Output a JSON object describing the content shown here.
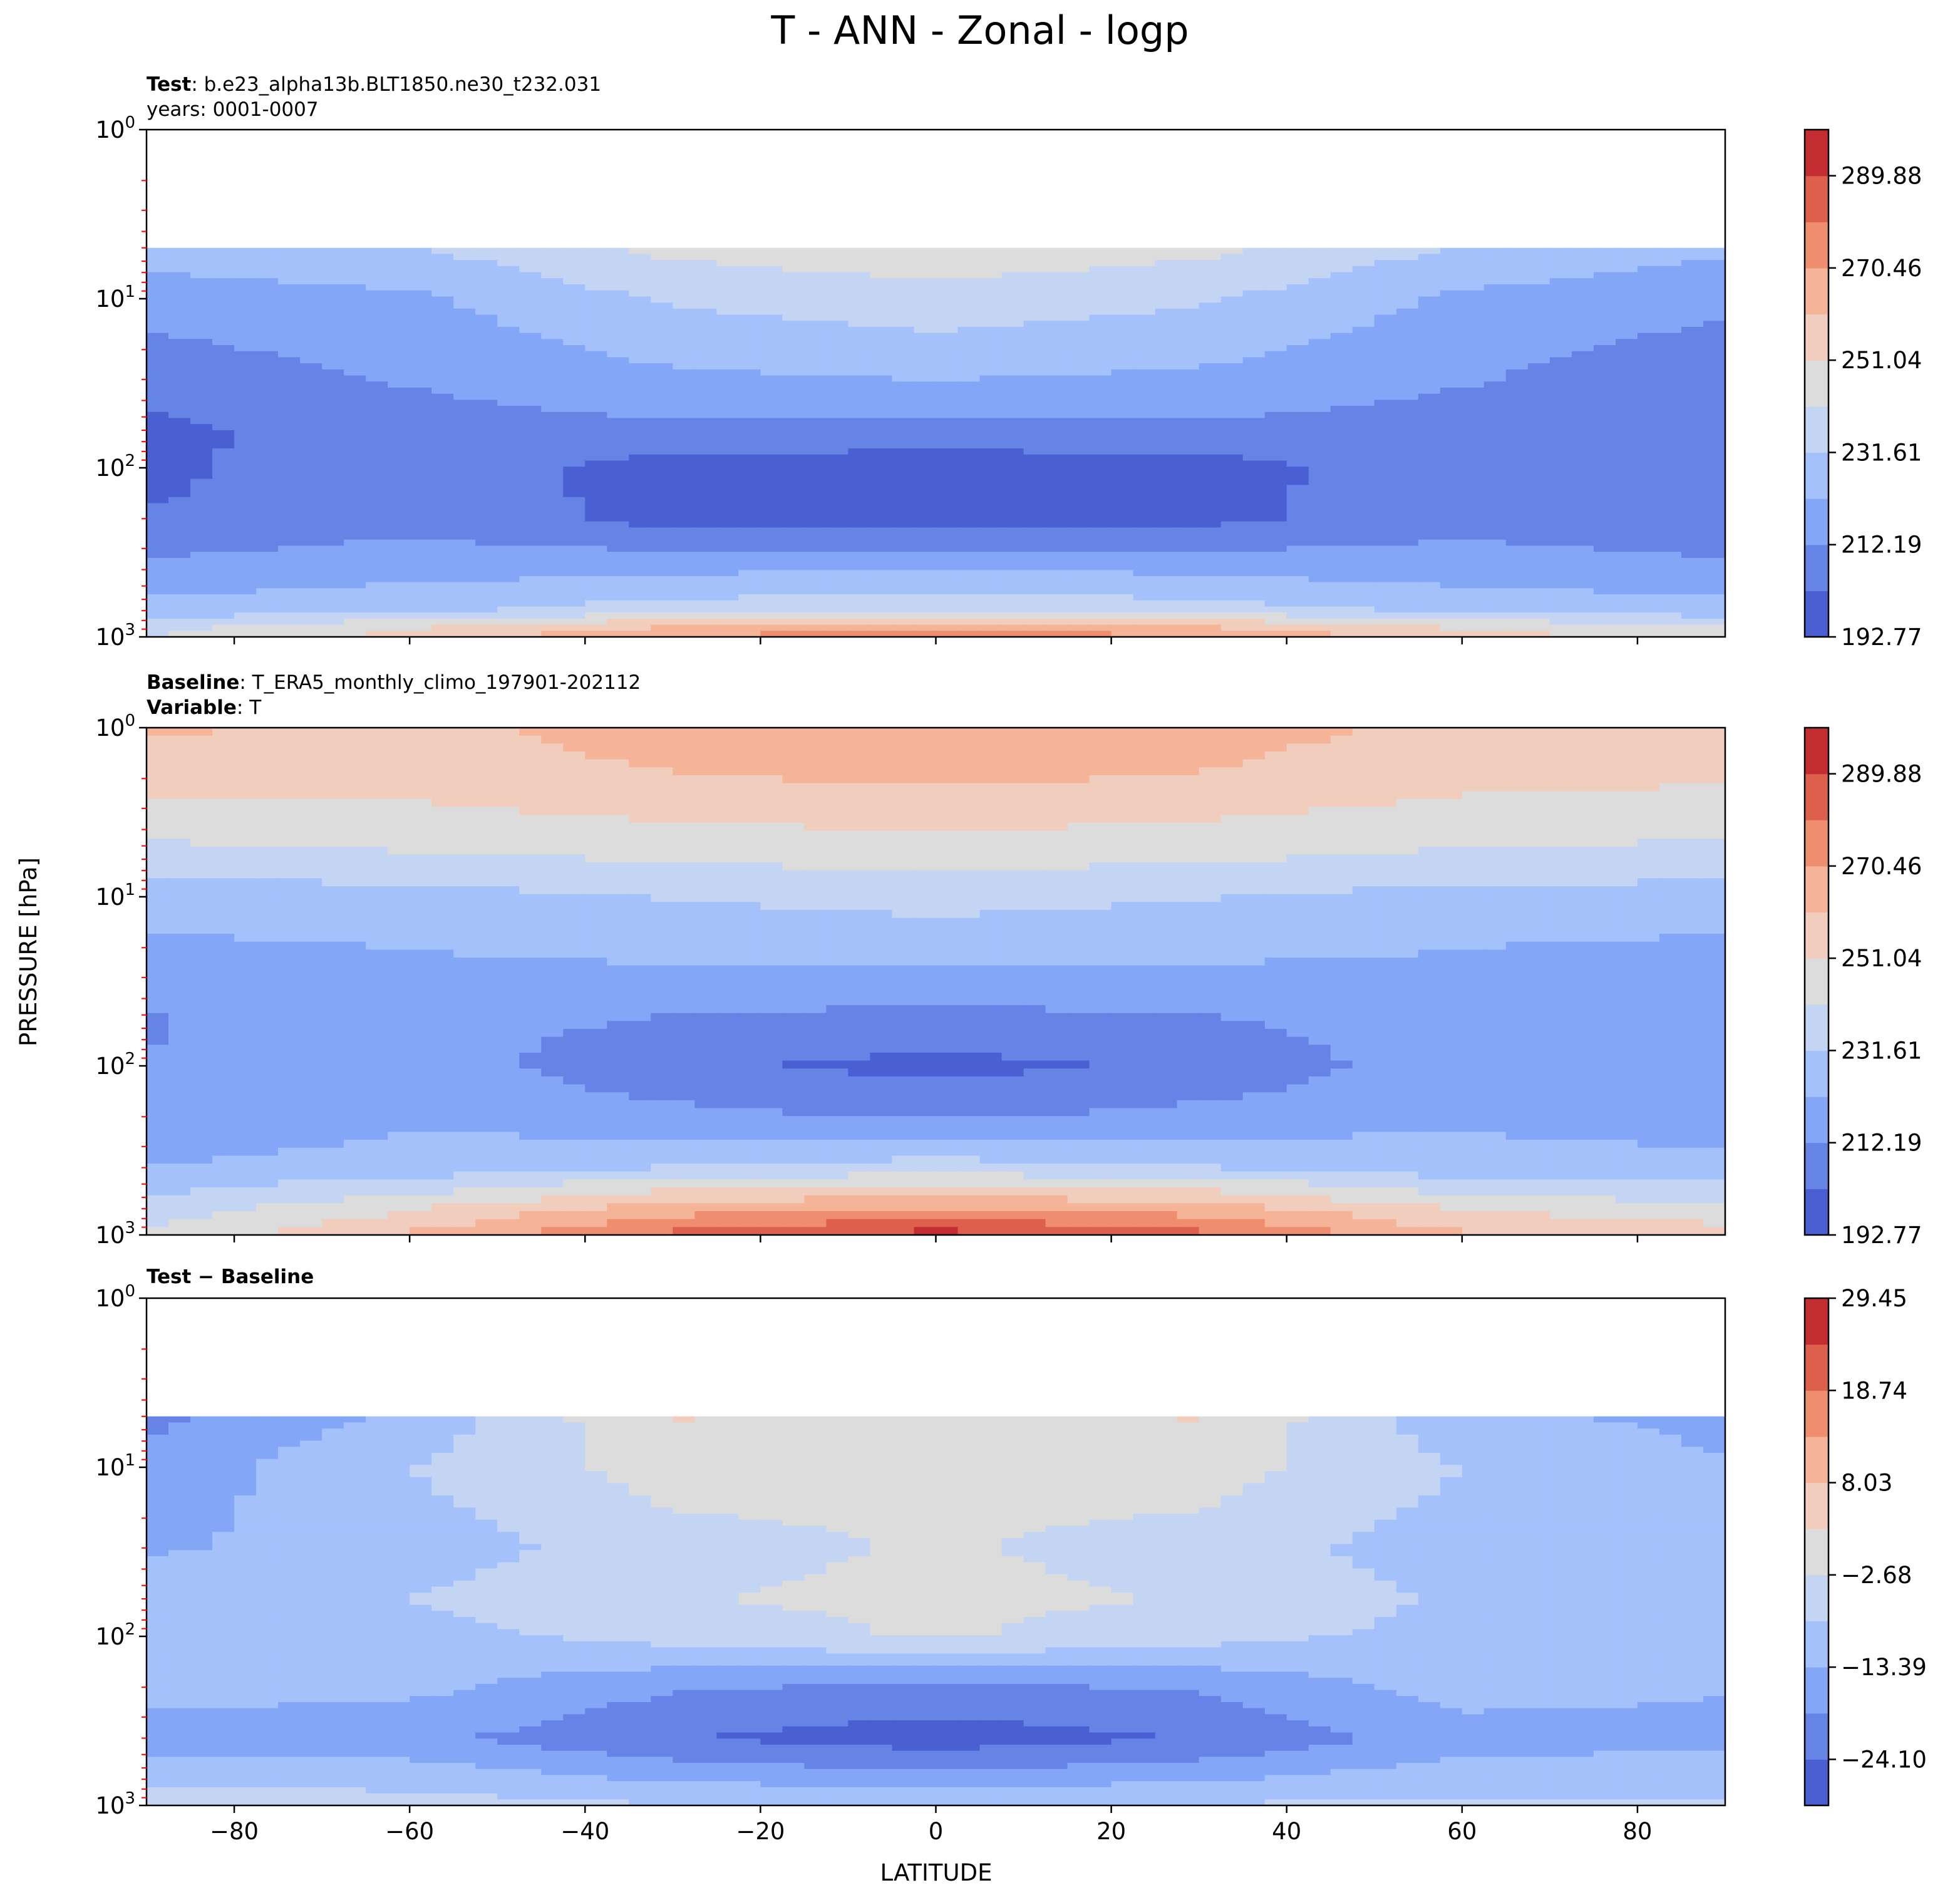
{
  "figure": {
    "title": "T - ANN - Zonal - logp",
    "xlabel": "LATITUDE",
    "ylabel": "PRESSURE [hPa]"
  },
  "colors": {
    "scale": [
      "#4a5fd1",
      "#6683e6",
      "#84a6f7",
      "#a4c1fc",
      "#c3d5f3",
      "#dcdcdc",
      "#f1cdbd",
      "#f5b498",
      "#ef8e6f",
      "#dd604d",
      "#c32c30"
    ],
    "diff_scale": [
      "#4a5fd1",
      "#6683e6",
      "#84a6f7",
      "#a4c1fc",
      "#c3d5f3",
      "#dcdcdc",
      "#f1cdbd",
      "#f5b498",
      "#ef8e6f",
      "#dd604d",
      "#c32c30"
    ],
    "axis": "#000000",
    "minor_tick": "#ff0000"
  },
  "chart_data": [
    {
      "type": "heatmap",
      "panel": "test",
      "header": [
        {
          "bold": "Test",
          "text": ": b.e23_alpha13b.BLT1850.ne30_t232.031"
        },
        {
          "bold": "",
          "text": "years: 0001-0007"
        }
      ],
      "x_ticks": [
        "−80",
        "−60",
        "−40",
        "−20",
        "0",
        "20",
        "40",
        "60",
        "80"
      ],
      "x_tick_values": [
        -80,
        -60,
        -40,
        -20,
        0,
        20,
        40,
        60,
        80
      ],
      "xlim": [
        -90,
        90
      ],
      "y_scale": "log",
      "y_inverted": true,
      "ylim": [
        1000,
        1
      ],
      "y_ticks": [
        {
          "base": "10",
          "exp": "0"
        },
        {
          "base": "10",
          "exp": "1"
        },
        {
          "base": "10",
          "exp": "2"
        },
        {
          "base": "10",
          "exp": "3"
        }
      ],
      "colorbar_ticks": [
        "192.77",
        "212.19",
        "231.61",
        "251.04",
        "270.46",
        "289.88"
      ],
      "colorbar_range": [
        192.77,
        299.59
      ],
      "colorbar_levels": 11,
      "data_top_hPa": 5,
      "latitudes": [
        -90,
        -60,
        -30,
        0,
        30,
        60,
        90
      ],
      "pressure_levels_hPa": [
        5,
        10,
        30,
        60,
        100,
        200,
        400,
        700,
        850,
        1000
      ],
      "values": [
        [
          226,
          231,
          244,
          248,
          244,
          231,
          224
        ],
        [
          217,
          220,
          233,
          238,
          233,
          220,
          214
        ],
        [
          206,
          213,
          220,
          222,
          220,
          213,
          206
        ],
        [
          200,
          208,
          210,
          210,
          210,
          208,
          206
        ],
        [
          200,
          209,
          198,
          196,
          198,
          209,
          206
        ],
        [
          203,
          209,
          199,
          197,
          199,
          210,
          206
        ],
        [
          215,
          218,
          220,
          222,
          220,
          216,
          214
        ],
        [
          225,
          230,
          236,
          240,
          236,
          230,
          226
        ],
        [
          237,
          248,
          258,
          262,
          258,
          248,
          240
        ],
        [
          242,
          255,
          272,
          278,
          272,
          255,
          248
        ]
      ]
    },
    {
      "type": "heatmap",
      "panel": "baseline",
      "header": [
        {
          "bold": "Baseline",
          "text": ": T_ERA5_monthly_climo_197901-202112"
        },
        {
          "bold": "Variable",
          "text": ": T"
        }
      ],
      "x_ticks": [
        "−80",
        "−60",
        "−40",
        "−20",
        "0",
        "20",
        "40",
        "60",
        "80"
      ],
      "x_tick_values": [
        -80,
        -60,
        -40,
        -20,
        0,
        20,
        40,
        60,
        80
      ],
      "xlim": [
        -90,
        90
      ],
      "y_scale": "log",
      "y_inverted": true,
      "ylim": [
        1000,
        1
      ],
      "y_ticks": [
        {
          "base": "10",
          "exp": "0"
        },
        {
          "base": "10",
          "exp": "1"
        },
        {
          "base": "10",
          "exp": "2"
        },
        {
          "base": "10",
          "exp": "3"
        }
      ],
      "colorbar_ticks": [
        "192.77",
        "212.19",
        "231.61",
        "251.04",
        "270.46",
        "289.88"
      ],
      "colorbar_range": [
        192.77,
        299.59
      ],
      "colorbar_levels": 11,
      "data_top_hPa": 1,
      "latitudes": [
        -90,
        -60,
        -30,
        0,
        30,
        60,
        90
      ],
      "pressure_levels_hPa": [
        1,
        2,
        5,
        10,
        20,
        50,
        100,
        200,
        400,
        700,
        1000
      ],
      "values": [
        [
          262,
          258,
          266,
          268,
          266,
          257,
          255
        ],
        [
          256,
          255,
          260,
          262,
          260,
          254,
          252
        ],
        [
          240,
          243,
          246,
          248,
          246,
          242,
          240
        ],
        [
          226,
          228,
          232,
          235,
          232,
          228,
          228
        ],
        [
          220,
          222,
          225,
          226,
          225,
          222,
          220
        ],
        [
          212,
          216,
          212,
          210,
          212,
          216,
          216
        ],
        [
          212,
          217,
          205,
          199,
          205,
          218,
          216
        ],
        [
          214,
          220,
          215,
          211,
          215,
          220,
          218
        ],
        [
          222,
          226,
          232,
          236,
          232,
          226,
          224
        ],
        [
          236,
          250,
          266,
          272,
          266,
          250,
          244
        ],
        [
          242,
          262,
          283,
          294,
          283,
          262,
          256
        ]
      ]
    },
    {
      "type": "heatmap",
      "panel": "difference",
      "header": [
        {
          "bold": "Test − Baseline",
          "text": ""
        }
      ],
      "x_ticks": [
        "−80",
        "−60",
        "−40",
        "−20",
        "0",
        "20",
        "40",
        "60",
        "80"
      ],
      "x_tick_values": [
        -80,
        -60,
        -40,
        -20,
        0,
        20,
        40,
        60,
        80
      ],
      "xlim": [
        -90,
        90
      ],
      "y_scale": "log",
      "y_inverted": true,
      "ylim": [
        1000,
        1
      ],
      "y_ticks": [
        {
          "base": "10",
          "exp": "0"
        },
        {
          "base": "10",
          "exp": "1"
        },
        {
          "base": "10",
          "exp": "2"
        },
        {
          "base": "10",
          "exp": "3"
        }
      ],
      "colorbar_ticks": [
        "−24.10",
        "−13.39",
        "−2.68",
        "8.03",
        "18.74",
        "29.45"
      ],
      "colorbar_range": [
        -29.45,
        29.45
      ],
      "colorbar_levels": 11,
      "data_top_hPa": 5,
      "latitudes": [
        -90,
        -60,
        -30,
        0,
        30,
        60,
        90
      ],
      "pressure_levels_hPa": [
        5,
        10,
        30,
        60,
        100,
        200,
        400,
        700,
        850,
        1000
      ],
      "values": [
        [
          -20,
          -12,
          3,
          0,
          3,
          -12,
          -15
        ],
        [
          -17,
          -8,
          0,
          -1,
          0,
          -8,
          -13
        ],
        [
          -14,
          -11,
          -5,
          -2,
          -5,
          -11,
          -13
        ],
        [
          -10,
          -8,
          -3,
          -1,
          -3,
          -9,
          -12
        ],
        [
          -8,
          -10,
          -6,
          -2,
          -6,
          -10,
          -12
        ],
        [
          -12,
          -12,
          -18,
          -20,
          -18,
          -11,
          -13
        ],
        [
          -15,
          -17,
          -24,
          -27,
          -24,
          -16,
          -15
        ],
        [
          -11,
          -10,
          -14,
          -17,
          -14,
          -10,
          -10
        ],
        [
          -5,
          -8,
          -10,
          -11,
          -10,
          -9,
          -10
        ],
        [
          -2,
          -5,
          -8,
          -10,
          -8,
          -6,
          -5
        ]
      ]
    }
  ]
}
